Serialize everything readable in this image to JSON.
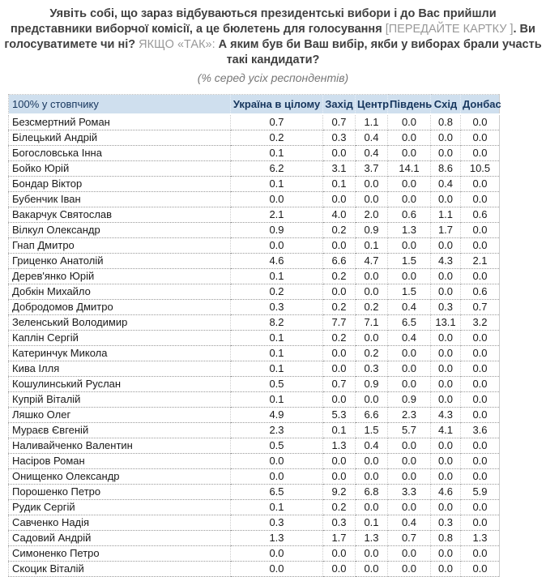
{
  "title": {
    "lines": [
      [
        {
          "text": "Уявіть собі, що зараз відбуваються президентські вибори і до Вас прийшли",
          "muted": false
        }
      ],
      [
        {
          "text": "представники виборчої комісії, а це бюлетень для голосування ",
          "muted": false
        },
        {
          "text": "[ПЕРЕДАЙТЕ КАРТКУ ]",
          "muted": true
        },
        {
          "text": ". Ви",
          "muted": false
        }
      ],
      [
        {
          "text": "голосуватимете чи ні? ",
          "muted": false
        },
        {
          "text": "ЯКЩО «ТАК»:",
          "muted": true
        },
        {
          "text": " А яким був би Ваш вибір, якби у виборах брали участь",
          "muted": false
        }
      ],
      [
        {
          "text": "такі кандидати?",
          "muted": false
        }
      ]
    ],
    "subtitle": "(% серед усіх респондентів)"
  },
  "chart_data": {
    "type": "table",
    "title": "Уявіть собі, що зараз відбуваються президентські вибори і до Вас прийшли представники виборчої комісії, а це бюлетень для голосування [ПЕРЕДАЙТЕ КАРТКУ ]. Ви голосуватимете чи ні? ЯКЩО «ТАК»: А яким був би Ваш вибір, якби у виборах брали участь такі кандидати?",
    "subtitle": "(% серед усіх респондентів)",
    "corner_label": "100% у стовпчику",
    "columns": [
      "Україна в цілому",
      "Захід",
      "Центр",
      "Південь",
      "Схід",
      "Донбас"
    ],
    "rows": [
      {
        "candidate": "Безсмертний Роман",
        "values": [
          0.7,
          0.7,
          1.1,
          0.0,
          0.8,
          0.0
        ]
      },
      {
        "candidate": "Білецький Андрій",
        "values": [
          0.2,
          0.3,
          0.4,
          0.0,
          0.0,
          0.0
        ]
      },
      {
        "candidate": "Богословська Інна",
        "values": [
          0.1,
          0.0,
          0.4,
          0.0,
          0.0,
          0.0
        ]
      },
      {
        "candidate": "Бойко Юрій",
        "values": [
          6.2,
          3.1,
          3.7,
          14.1,
          8.6,
          10.5
        ]
      },
      {
        "candidate": "Бондар Віктор",
        "values": [
          0.1,
          0.1,
          0.0,
          0.0,
          0.4,
          0.0
        ]
      },
      {
        "candidate": "Бубенчик Іван",
        "values": [
          0.0,
          0.0,
          0.0,
          0.0,
          0.0,
          0.0
        ]
      },
      {
        "candidate": "Вакарчук Святослав",
        "values": [
          2.1,
          4.0,
          2.0,
          0.6,
          1.1,
          0.6
        ]
      },
      {
        "candidate": "Вілкул Олександр",
        "values": [
          0.9,
          0.2,
          0.9,
          1.3,
          1.7,
          0.0
        ]
      },
      {
        "candidate": "Гнап Дмитро",
        "values": [
          0.0,
          0.0,
          0.1,
          0.0,
          0.0,
          0.0
        ]
      },
      {
        "candidate": "Гриценко Анатолій",
        "values": [
          4.6,
          6.6,
          4.7,
          1.5,
          4.3,
          2.1
        ]
      },
      {
        "candidate": "Дерев'янко Юрій",
        "values": [
          0.1,
          0.2,
          0.0,
          0.0,
          0.0,
          0.0
        ]
      },
      {
        "candidate": "Добкін Михайло",
        "values": [
          0.2,
          0.0,
          0.0,
          1.5,
          0.0,
          0.6
        ]
      },
      {
        "candidate": "Добродомов Дмитро",
        "values": [
          0.3,
          0.2,
          0.2,
          0.4,
          0.3,
          0.7
        ]
      },
      {
        "candidate": "Зеленський Володимир",
        "values": [
          8.2,
          7.7,
          7.1,
          6.5,
          13.1,
          3.2
        ]
      },
      {
        "candidate": "Каплін Сергій",
        "values": [
          0.1,
          0.2,
          0.0,
          0.4,
          0.0,
          0.0
        ]
      },
      {
        "candidate": "Катеринчук Микола",
        "values": [
          0.1,
          0.0,
          0.2,
          0.0,
          0.0,
          0.0
        ]
      },
      {
        "candidate": "Кива Ілля",
        "values": [
          0.1,
          0.0,
          0.3,
          0.0,
          0.0,
          0.0
        ]
      },
      {
        "candidate": "Кошулинський Руслан",
        "values": [
          0.5,
          0.7,
          0.9,
          0.0,
          0.0,
          0.0
        ]
      },
      {
        "candidate": "Купрій Віталій",
        "values": [
          0.1,
          0.0,
          0.0,
          0.9,
          0.0,
          0.0
        ]
      },
      {
        "candidate": "Ляшко Олег",
        "values": [
          4.9,
          5.3,
          6.6,
          2.3,
          4.3,
          0.0
        ]
      },
      {
        "candidate": "Мураєв Євгеній",
        "values": [
          2.3,
          0.1,
          1.5,
          5.7,
          4.1,
          3.6
        ]
      },
      {
        "candidate": "Наливайченко Валентин",
        "values": [
          0.5,
          1.3,
          0.4,
          0.0,
          0.0,
          0.0
        ]
      },
      {
        "candidate": "Насіров Роман",
        "values": [
          0.0,
          0.0,
          0.0,
          0.0,
          0.0,
          0.0
        ]
      },
      {
        "candidate": "Онищенко Олександр",
        "values": [
          0.0,
          0.0,
          0.0,
          0.0,
          0.0,
          0.0
        ]
      },
      {
        "candidate": "Порошенко Петро",
        "values": [
          6.5,
          9.2,
          6.8,
          3.3,
          4.6,
          5.9
        ]
      },
      {
        "candidate": "Рудик Сергій",
        "values": [
          0.1,
          0.2,
          0.0,
          0.0,
          0.0,
          0.0
        ]
      },
      {
        "candidate": "Савченко Надія",
        "values": [
          0.3,
          0.3,
          0.1,
          0.4,
          0.3,
          0.0
        ]
      },
      {
        "candidate": "Садовий Андрій",
        "values": [
          1.3,
          1.7,
          1.3,
          0.7,
          0.8,
          1.3
        ]
      },
      {
        "candidate": "Симоненко Петро",
        "values": [
          0.0,
          0.0,
          0.0,
          0.0,
          0.0,
          0.0
        ]
      },
      {
        "candidate": "Скоцик Віталій",
        "values": [
          0.0,
          0.0,
          0.0,
          0.0,
          0.0,
          0.0
        ]
      }
    ],
    "value_format": "one_decimal_percent",
    "layout": {
      "grid": "dotted",
      "header_position": "top"
    }
  },
  "colors": {
    "header_bg": "#cfdfee",
    "header_text": "#17365d",
    "title_text": "#404040",
    "muted_text": "#999999",
    "body_text": "#1a1a1a",
    "row_border": "#999999",
    "col_border": "#cccccc"
  }
}
